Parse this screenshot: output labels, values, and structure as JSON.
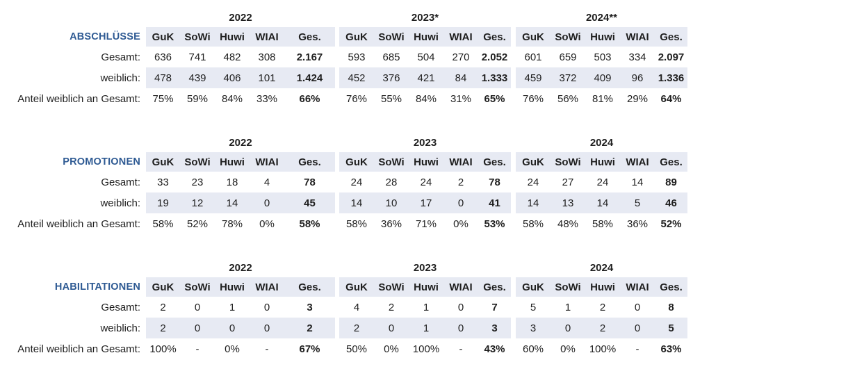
{
  "colors": {
    "row_shade": "#e7eaf3",
    "section_title": "#2e5a93",
    "text": "#1f1f1f",
    "background": "#ffffff"
  },
  "columns": [
    "GuK",
    "SoWi",
    "Huwi",
    "WIAI",
    "Ges."
  ],
  "row_labels": {
    "total": "Gesamt:",
    "female": "weiblich:",
    "share": "Anteil weiblich an Gesamt:"
  },
  "sections": [
    {
      "title": "ABSCHLÜSSE",
      "years": [
        {
          "year": "2022",
          "total": [
            "636",
            "741",
            "482",
            "308",
            "2.167"
          ],
          "female": [
            "478",
            "439",
            "406",
            "101",
            "1.424"
          ],
          "share": [
            "75%",
            "59%",
            "84%",
            "33%",
            "66%"
          ]
        },
        {
          "year": "2023*",
          "total": [
            "593",
            "685",
            "504",
            "270",
            "2.052"
          ],
          "female": [
            "452",
            "376",
            "421",
            "84",
            "1.333"
          ],
          "share": [
            "76%",
            "55%",
            "84%",
            "31%",
            "65%"
          ]
        },
        {
          "year": "2024**",
          "total": [
            "601",
            "659",
            "503",
            "334",
            "2.097"
          ],
          "female": [
            "459",
            "372",
            "409",
            "96",
            "1.336"
          ],
          "share": [
            "76%",
            "56%",
            "81%",
            "29%",
            "64%"
          ]
        }
      ]
    },
    {
      "title": "PROMOTIONEN",
      "years": [
        {
          "year": "2022",
          "total": [
            "33",
            "23",
            "18",
            "4",
            "78"
          ],
          "female": [
            "19",
            "12",
            "14",
            "0",
            "45"
          ],
          "share": [
            "58%",
            "52%",
            "78%",
            "0%",
            "58%"
          ]
        },
        {
          "year": "2023",
          "total": [
            "24",
            "28",
            "24",
            "2",
            "78"
          ],
          "female": [
            "14",
            "10",
            "17",
            "0",
            "41"
          ],
          "share": [
            "58%",
            "36%",
            "71%",
            "0%",
            "53%"
          ]
        },
        {
          "year": "2024",
          "total": [
            "24",
            "27",
            "24",
            "14",
            "89"
          ],
          "female": [
            "14",
            "13",
            "14",
            "5",
            "46"
          ],
          "share": [
            "58%",
            "48%",
            "58%",
            "36%",
            "52%"
          ]
        }
      ]
    },
    {
      "title": "HABILITATIONEN",
      "years": [
        {
          "year": "2022",
          "total": [
            "2",
            "0",
            "1",
            "0",
            "3"
          ],
          "female": [
            "2",
            "0",
            "0",
            "0",
            "2"
          ],
          "share": [
            "100%",
            "-",
            "0%",
            "-",
            "67%"
          ]
        },
        {
          "year": "2023",
          "total": [
            "4",
            "2",
            "1",
            "0",
            "7"
          ],
          "female": [
            "2",
            "0",
            "1",
            "0",
            "3"
          ],
          "share": [
            "50%",
            "0%",
            "100%",
            "-",
            "43%"
          ]
        },
        {
          "year": "2024",
          "total": [
            "5",
            "1",
            "2",
            "0",
            "8"
          ],
          "female": [
            "3",
            "0",
            "2",
            "0",
            "5"
          ],
          "share": [
            "60%",
            "0%",
            "100%",
            "-",
            "63%"
          ]
        }
      ]
    }
  ]
}
